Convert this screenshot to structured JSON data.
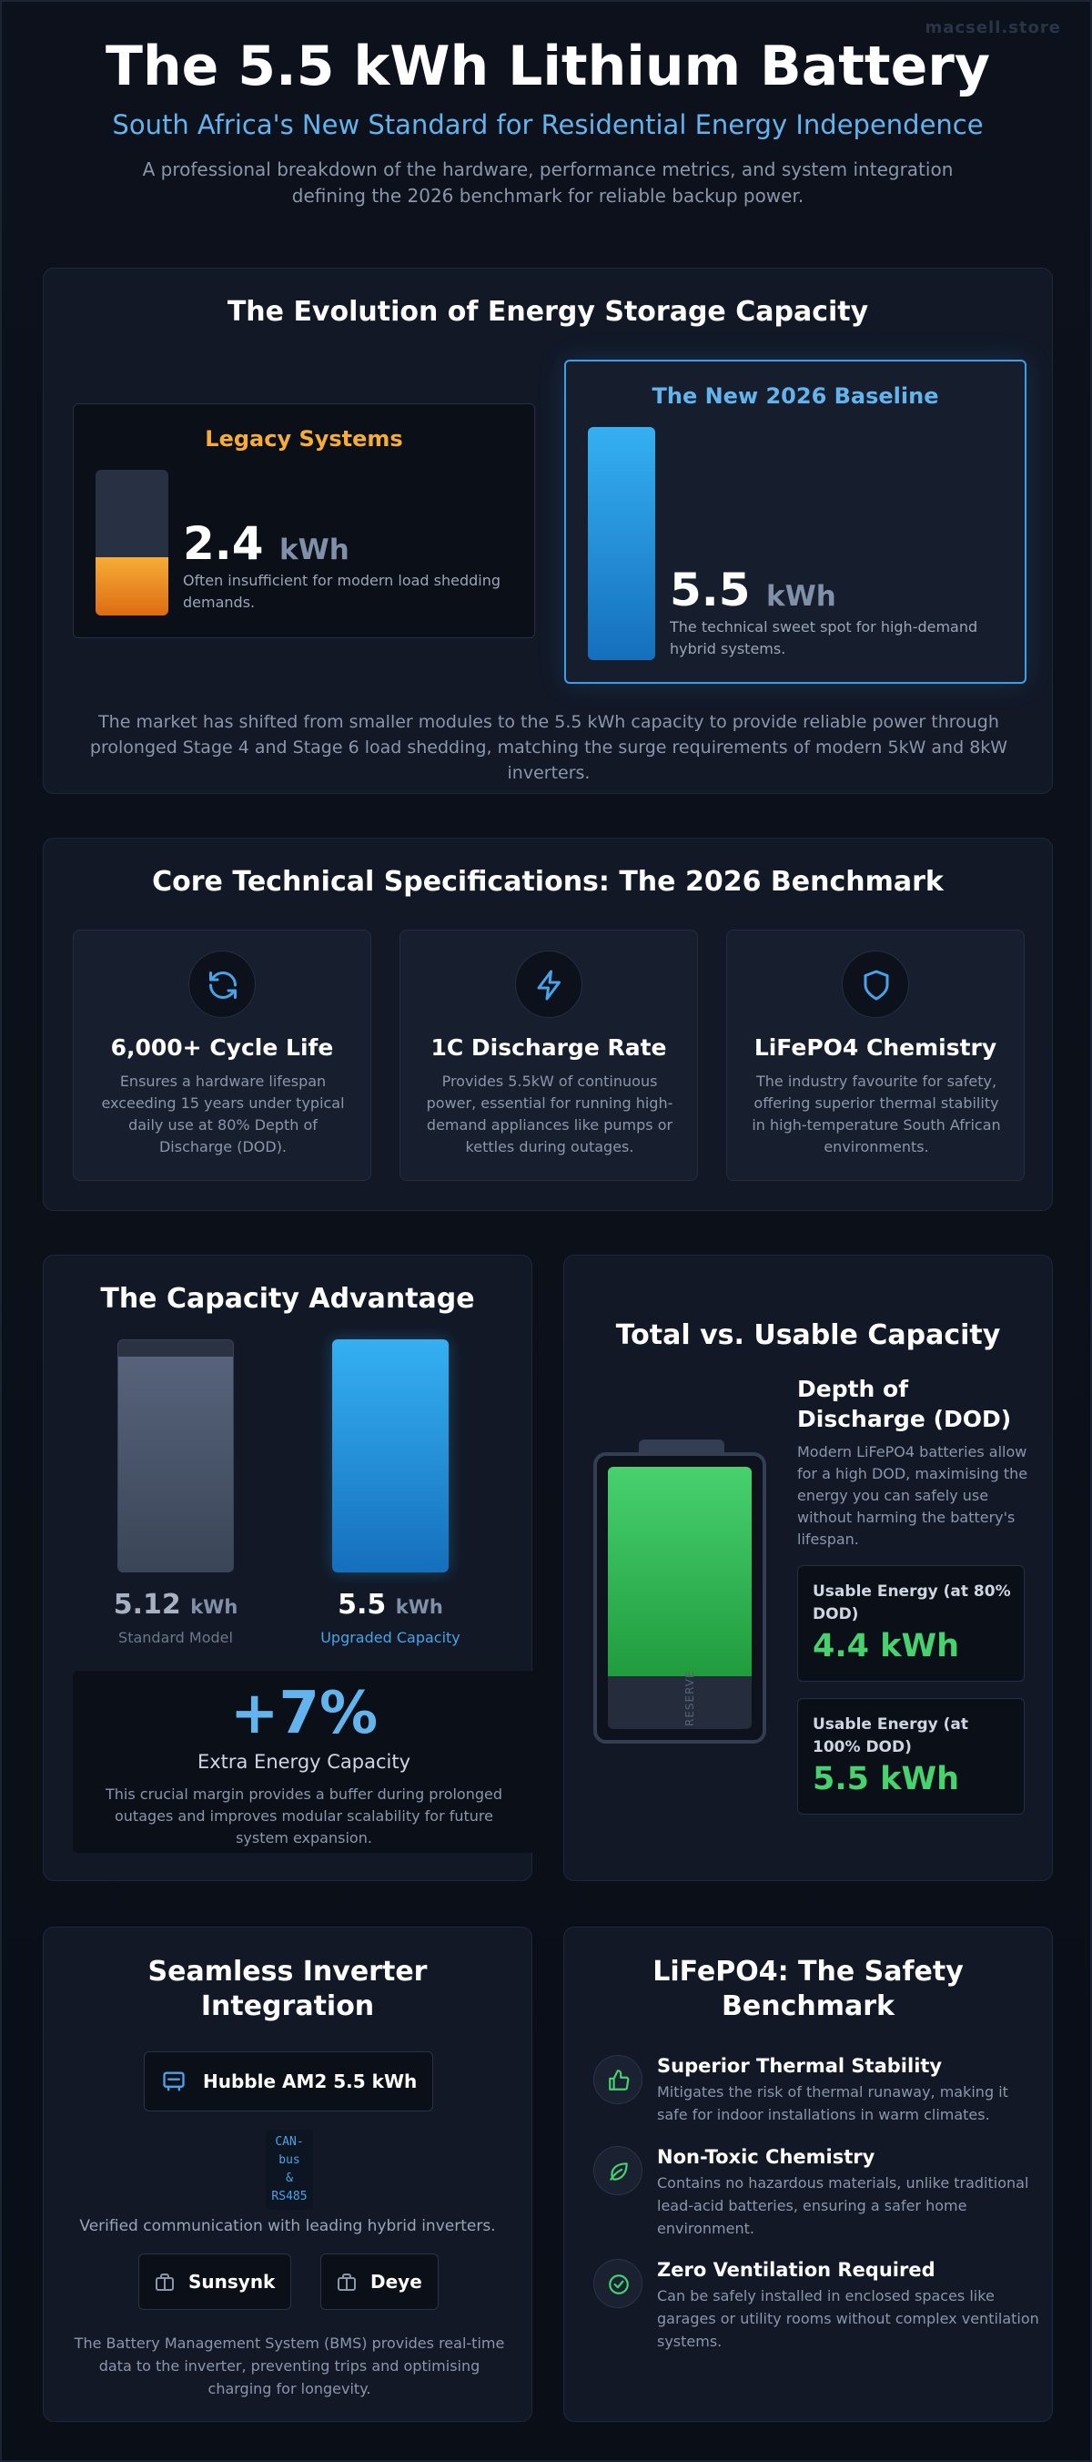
{
  "watermark": "macsell.store",
  "hero": {
    "title": "The 5.5 kWh Lithium Battery",
    "subtitle": "South Africa's New Standard for Residential Energy Independence",
    "description": "A professional breakdown of the hardware, performance metrics, and system integration defining the 2026 benchmark for reliable backup power."
  },
  "evolution": {
    "title": "The Evolution of Energy Storage Capacity",
    "legacy": {
      "label": "Legacy Systems",
      "value": "2.4",
      "unit": "kWh",
      "description": "Often insufficient for modern load shedding demands.",
      "fill_fraction": 0.4
    },
    "baseline": {
      "label": "The New 2026 Baseline",
      "value": "5.5",
      "unit": "kWh",
      "description": "The technical sweet spot for high-demand hybrid systems.",
      "fill_fraction": 1.0
    },
    "footer": "The market has shifted from smaller modules to the 5.5 kWh capacity to provide reliable power through prolonged Stage 4 and Stage 6 load shedding, matching the surge requirements of modern 5kW and 8kW inverters."
  },
  "specs": {
    "title": "Core Technical Specifications: The 2026 Benchmark",
    "items": [
      {
        "icon": "refresh-icon",
        "title": "6,000+ Cycle Life",
        "description": "Ensures a hardware lifespan exceeding 15 years under typical daily use at 80% Depth of Discharge (DOD)."
      },
      {
        "icon": "lightning-icon",
        "title": "1C Discharge Rate",
        "description": "Provides 5.5kW of continuous power, essential for running high-demand appliances like pumps or kettles during outages."
      },
      {
        "icon": "shield-icon",
        "title": "LiFePO4 Chemistry",
        "description": "The industry favourite for safety, offering superior thermal stability in high-temperature South African environments."
      }
    ]
  },
  "capacity": {
    "title": "The Capacity Advantage",
    "standard": {
      "value": "5.12",
      "unit": "kWh",
      "label": "Standard Model",
      "fill_fraction": 0.93
    },
    "upgraded": {
      "value": "5.5",
      "unit": "kWh",
      "label": "Upgraded Capacity",
      "fill_fraction": 1.0
    },
    "extra_pct": "+7%",
    "extra_label": "Extra Energy Capacity",
    "extra_desc": "This crucial margin provides a buffer during prolonged outages and improves modular scalability for future system expansion."
  },
  "usable": {
    "title": "Total vs. Usable Capacity",
    "reserve_label": "RESERVE",
    "usable_fraction": 0.8,
    "dod_title": "Depth of Discharge (DOD)",
    "dod_desc": "Modern LiFePO4 batteries allow for a high DOD, maximising the energy you can safely use without harming the battery's lifespan.",
    "items": [
      {
        "label": "Usable Energy (at 80% DOD)",
        "value": "4.4 kWh"
      },
      {
        "label": "Usable Energy (at 100% DOD)",
        "value": "5.5 kWh"
      }
    ]
  },
  "inverter": {
    "title_line1": "Seamless Inverter",
    "title_line2": "Integration",
    "product": "Hubble AM2 5.5 kWh",
    "protocol": [
      "CAN-",
      "bus",
      "&",
      "RS485"
    ],
    "verified": "Verified communication with leading hybrid inverters.",
    "brands": [
      "Sunsynk",
      "Deye"
    ],
    "footer": "The Battery Management System (BMS) provides real-time data to the inverter, preventing trips and optimising charging for longevity."
  },
  "safety": {
    "title_line1": "LiFePO4: The Safety",
    "title_line2": "Benchmark",
    "items": [
      {
        "icon": "thumbs-up-icon",
        "title": "Superior Thermal Stability",
        "description": "Mitigates the risk of thermal runaway, making it safe for indoor installations in warm climates."
      },
      {
        "icon": "leaf-icon",
        "title": "Non-Toxic Chemistry",
        "description": "Contains no hazardous materials, unlike traditional lead-acid batteries, ensuring a safer home environment."
      },
      {
        "icon": "check-circle-icon",
        "title": "Zero Ventilation Required",
        "description": "Can be safely installed in enclosed spaces like garages or utility rooms without complex ventilation systems."
      }
    ]
  },
  "colors": {
    "accent_blue": "#3b9ee6",
    "legacy_orange": "#f6ad37",
    "usable_green": "#48d16f",
    "background": "#0b0f18"
  }
}
